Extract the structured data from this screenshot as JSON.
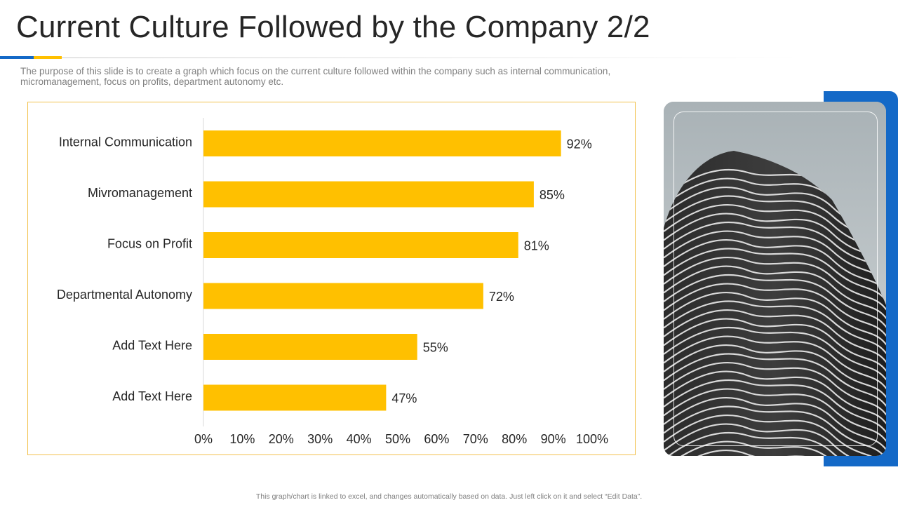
{
  "slide": {
    "title": "Current Culture Followed by the Company 2/2",
    "subtitle": "The purpose of this slide is to create a graph which focus on the current culture followed within the company such as internal communication, micromanagement, focus on profits, department autonomy etc.",
    "footer": "This graph/chart is linked to excel, and changes automatically based on data. Just left click on it and select “Edit Data”."
  },
  "colors": {
    "bar": "#ffc000",
    "accent_blue": "#1469c7",
    "chart_border": "#f2c14e",
    "text": "#262626"
  },
  "image": {
    "subject": "building-photo"
  },
  "chart_data": {
    "type": "bar",
    "orientation": "horizontal",
    "categories": [
      "Internal Communication",
      "Mivromanagement",
      "Focus on Profit",
      "Departmental Autonomy",
      "Add Text Here",
      "Add Text Here"
    ],
    "values": [
      92,
      85,
      81,
      72,
      55,
      47
    ],
    "value_labels": [
      "92%",
      "85%",
      "81%",
      "72%",
      "55%",
      "47%"
    ],
    "xlim": [
      0,
      100
    ],
    "xticks": [
      0,
      10,
      20,
      30,
      40,
      50,
      60,
      70,
      80,
      90,
      100
    ],
    "xtick_labels": [
      "0%",
      "10%",
      "20%",
      "30%",
      "40%",
      "50%",
      "60%",
      "70%",
      "80%",
      "90%",
      "100%"
    ],
    "title": "",
    "xlabel": "",
    "ylabel": "",
    "grid": false,
    "legend": "none"
  }
}
